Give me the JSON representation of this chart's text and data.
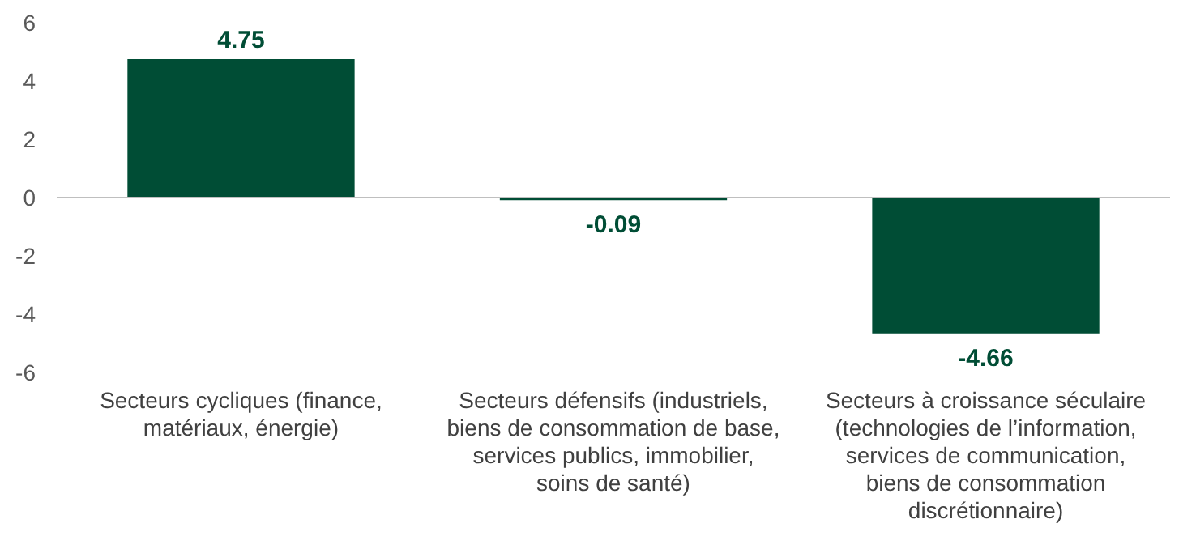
{
  "chart_data": {
    "type": "bar",
    "categories": [
      "Secteurs cycliques (finance,\nmatériaux, énergie)",
      "Secteurs défensifs (industriels,\nbiens de consommation de base,\nservices publics, immobilier,\nsoins de santé)",
      "Secteurs à croissance séculaire\n(technologies de l’information,\nservices de communication,\nbiens de consommation\ndiscrétionnaire)"
    ],
    "values": [
      4.75,
      -0.09,
      -4.66
    ],
    "color": "#004d35",
    "ylim": [
      -6,
      6
    ],
    "yticks": [
      -6,
      -4,
      -2,
      0,
      2,
      4,
      6
    ],
    "data_labels": true
  }
}
